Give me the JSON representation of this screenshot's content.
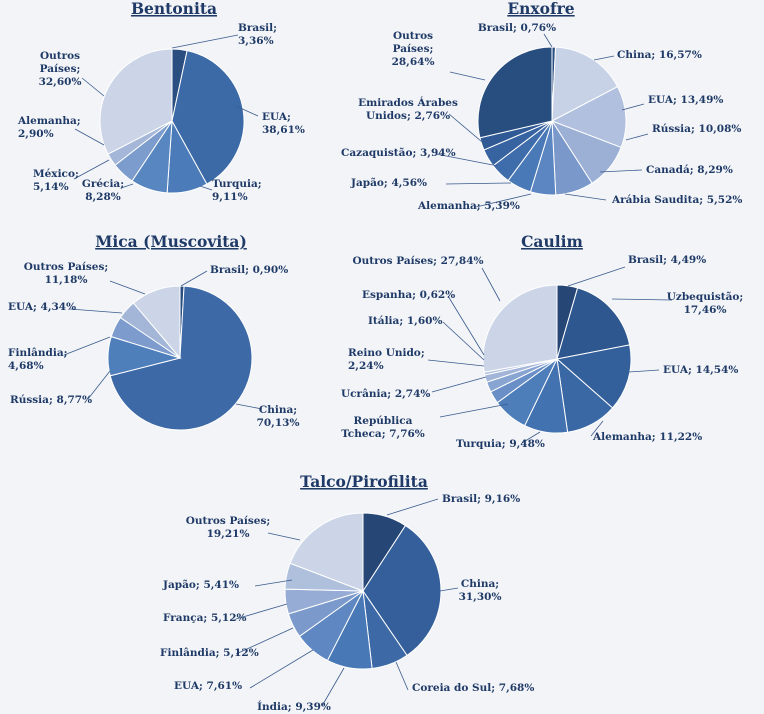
{
  "chart_data": [
    {
      "type": "pie",
      "title": "Bentonita",
      "slices": [
        {
          "label": [
            "Brasil;",
            "3,36%"
          ],
          "value": 3.36,
          "color": "#2a4e80"
        },
        {
          "label": [
            "EUA;",
            "38,61%"
          ],
          "value": 38.61,
          "color": "#3c6aa6"
        },
        {
          "label": [
            "Turquia;",
            "9,11%"
          ],
          "value": 9.11,
          "color": "#4b7cb9"
        },
        {
          "label": [
            "Grécia;",
            "8,28%"
          ],
          "value": 8.28,
          "color": "#5886c0"
        },
        {
          "label": [
            "México;",
            "5,14%"
          ],
          "value": 5.14,
          "color": "#7c9ccd"
        },
        {
          "label": [
            "Alemanha;",
            "2,90%"
          ],
          "value": 2.9,
          "color": "#a5b7d9"
        },
        {
          "label": [
            "Outros",
            "Países;",
            "32,60%"
          ],
          "value": 32.6,
          "color": "#ccd5e7"
        }
      ]
    },
    {
      "type": "pie",
      "title": "Enxofre",
      "slices": [
        {
          "label": [
            "Brasil; 0,76%"
          ],
          "value": 0.76,
          "color": "#2a4e80"
        },
        {
          "label": [
            "China; 16,57%"
          ],
          "value": 16.57,
          "color": "#c7d2e7"
        },
        {
          "label": [
            "EUA; 13,49%"
          ],
          "value": 13.49,
          "color": "#b1c0de"
        },
        {
          "label": [
            "Rússia; 10,08%"
          ],
          "value": 10.08,
          "color": "#9cb0d6"
        },
        {
          "label": [
            "Canadá; 8,29%"
          ],
          "value": 8.29,
          "color": "#7a98ca"
        },
        {
          "label": [
            "Arábia Saudita; 5,52%"
          ],
          "value": 5.52,
          "color": "#5b86c1"
        },
        {
          "label": [
            "Alemanha; 5,39%"
          ],
          "value": 5.39,
          "color": "#4a79b7"
        },
        {
          "label": [
            "Japão; 4,56%"
          ],
          "value": 4.56,
          "color": "#3f6dac"
        },
        {
          "label": [
            "Cazaquistão; 3,94%"
          ],
          "value": 3.94,
          "color": "#3763a0"
        },
        {
          "label": [
            "Emirados Árabes",
            "Unidos; 2,76%"
          ],
          "value": 2.76,
          "color": "#305a95"
        },
        {
          "label": [
            "Outros",
            "Países;",
            "28,64%"
          ],
          "value": 28.64,
          "color": "#284d7f"
        }
      ]
    },
    {
      "type": "pie",
      "title": "Mica (Muscovita)",
      "slices": [
        {
          "label": [
            "Brasil; 0,90%"
          ],
          "value": 0.9,
          "color": "#2a4e80"
        },
        {
          "label": [
            "China;",
            "70,13%"
          ],
          "value": 70.13,
          "color": "#3d6aa7"
        },
        {
          "label": [
            "Rússia; 8,77%"
          ],
          "value": 8.77,
          "color": "#4e7fbb"
        },
        {
          "label": [
            "Finlândia;",
            "4,68%"
          ],
          "value": 4.68,
          "color": "#7d9ccd"
        },
        {
          "label": [
            "EUA; 4,34%"
          ],
          "value": 4.34,
          "color": "#a3b6d8"
        },
        {
          "label": [
            "Outros Países;",
            "11,18%"
          ],
          "value": 11.18,
          "color": "#ccd5e7"
        }
      ]
    },
    {
      "type": "pie",
      "title": "Caulim",
      "slices": [
        {
          "label": [
            "Brasil; 4,49%"
          ],
          "value": 4.49,
          "color": "#264776"
        },
        {
          "label": [
            "Uzbequistão;",
            "17,46%"
          ],
          "value": 17.46,
          "color": "#2e578f"
        },
        {
          "label": [
            "EUA; 14,54%"
          ],
          "value": 14.54,
          "color": "#335f9a"
        },
        {
          "label": [
            "Alemanha; 11,22%"
          ],
          "value": 11.22,
          "color": "#3a68a5"
        },
        {
          "label": [
            "Turquia; 9,48%"
          ],
          "value": 9.48,
          "color": "#4272b0"
        },
        {
          "label": [
            "República",
            "Tcheca; 7,76%"
          ],
          "value": 7.76,
          "color": "#4d7eba"
        },
        {
          "label": [
            "Ucrânia; 2,74%"
          ],
          "value": 2.74,
          "color": "#6a8fc6"
        },
        {
          "label": [
            "Reino Unido;",
            "2,24%"
          ],
          "value": 2.24,
          "color": "#88a4d0"
        },
        {
          "label": [
            "Itália; 1,60%"
          ],
          "value": 1.6,
          "color": "#a2b5d8"
        },
        {
          "label": [
            "Espanha; 0,62%"
          ],
          "value": 0.62,
          "color": "#b7c5e0"
        },
        {
          "label": [
            "Outros Países; 27,84%"
          ],
          "value": 27.84,
          "color": "#ccd5e7"
        }
      ]
    },
    {
      "type": "pie",
      "title": "Talco/Pirofilita",
      "slices": [
        {
          "label": [
            "Brasil; 9,16%"
          ],
          "value": 9.16,
          "color": "#264776"
        },
        {
          "label": [
            "China;",
            "31,30%"
          ],
          "value": 31.3,
          "color": "#345f9b"
        },
        {
          "label": [
            "Coreia do Sul; 7,68%"
          ],
          "value": 7.68,
          "color": "#3d6aa7"
        },
        {
          "label": [
            "Índia; 9,39%"
          ],
          "value": 9.39,
          "color": "#4878b6"
        },
        {
          "label": [
            "EUA; 7,61%"
          ],
          "value": 7.61,
          "color": "#5f88c2"
        },
        {
          "label": [
            "Finlândia; 5,12%"
          ],
          "value": 5.12,
          "color": "#7b9acb"
        },
        {
          "label": [
            "França; 5,12%"
          ],
          "value": 5.12,
          "color": "#96acd4"
        },
        {
          "label": [
            "Japão; 5,41%"
          ],
          "value": 5.41,
          "color": "#afc0dd"
        },
        {
          "label": [
            "Outros Países;",
            "19,21%"
          ],
          "value": 19.21,
          "color": "#ccd5e7"
        }
      ]
    }
  ]
}
